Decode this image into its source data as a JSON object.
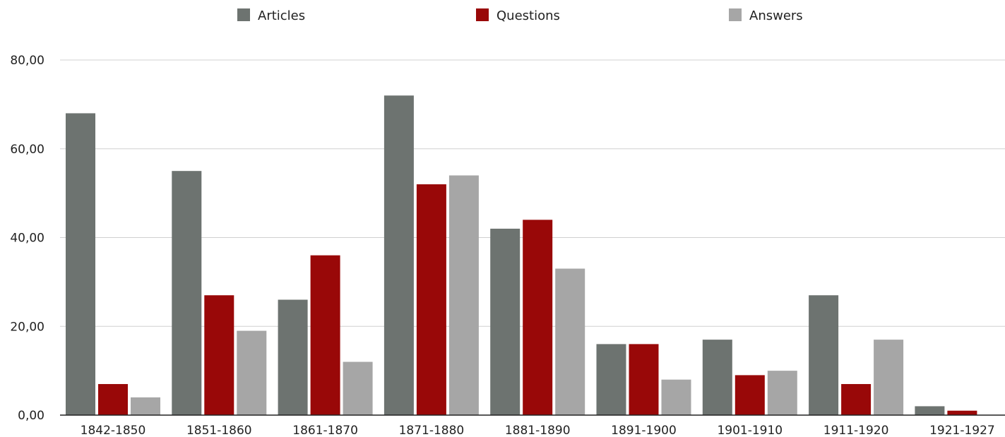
{
  "chart_data": {
    "type": "bar",
    "categories": [
      "1842-1850",
      "1851-1860",
      "1861-1870",
      "1871-1880",
      "1881-1890",
      "1891-1900",
      "1901-1910",
      "1911-1920",
      "1921-1927"
    ],
    "series": [
      {
        "name": "Articles",
        "color": "#6d7370",
        "values": [
          68,
          55,
          26,
          72,
          42,
          16,
          17,
          27,
          2
        ]
      },
      {
        "name": "Questions",
        "color": "#990808",
        "values": [
          7,
          27,
          36,
          52,
          44,
          16,
          9,
          7,
          1
        ]
      },
      {
        "name": "Answers",
        "color": "#a6a6a6",
        "values": [
          4,
          19,
          12,
          54,
          33,
          8,
          10,
          17,
          0
        ]
      }
    ],
    "y_ticks": [
      "0,00",
      "20,00",
      "40,00",
      "60,00",
      "80,00"
    ],
    "ylim": [
      0,
      80
    ],
    "grid": true,
    "legend_position": "top"
  }
}
